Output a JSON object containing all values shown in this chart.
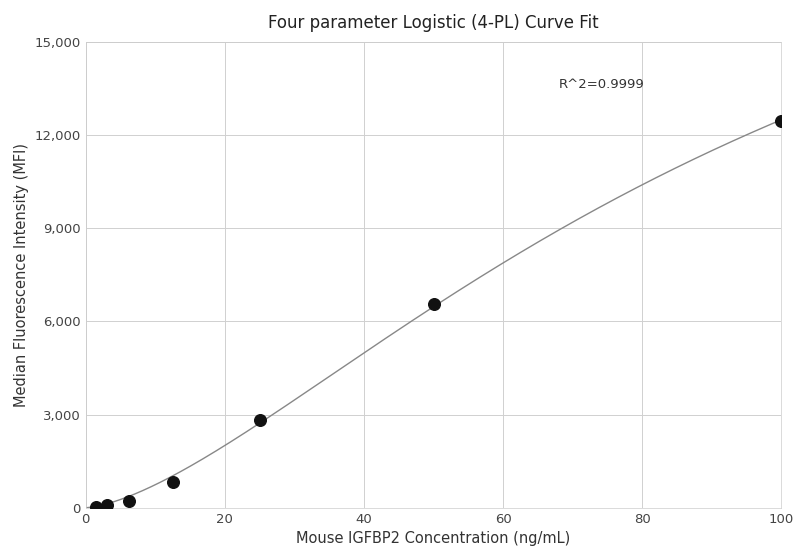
{
  "title": "Four parameter Logistic (4-PL) Curve Fit",
  "xlabel": "Mouse IGFBP2 Concentration (ng/mL)",
  "ylabel": "Median Fluorescence Intensity (MFI)",
  "scatter_x": [
    1.563,
    3.125,
    6.25,
    12.5,
    25.0,
    50.0,
    100.0
  ],
  "scatter_y": [
    25,
    80,
    200,
    820,
    2820,
    6550,
    12450
  ],
  "xlim": [
    0,
    100
  ],
  "ylim": [
    0,
    15000
  ],
  "yticks": [
    0,
    3000,
    6000,
    9000,
    12000,
    15000
  ],
  "xticks": [
    0,
    20,
    40,
    60,
    80,
    100
  ],
  "r_squared": "R^2=0.9999",
  "r2_x": 68,
  "r2_y": 13500,
  "curve_color": "#888888",
  "scatter_color": "#111111",
  "grid_color": "#d0d0d0",
  "bg_color": "#ffffff",
  "title_fontsize": 12,
  "label_fontsize": 10.5,
  "tick_fontsize": 9.5,
  "annotation_fontsize": 9.5
}
